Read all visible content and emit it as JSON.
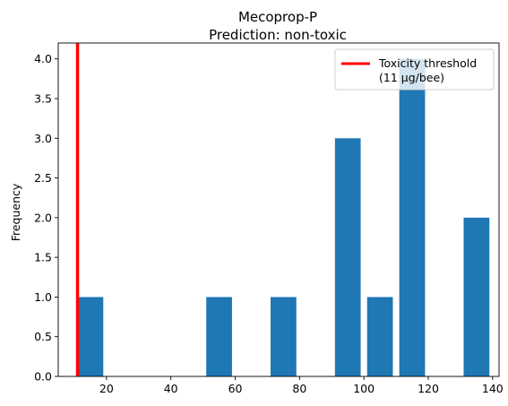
{
  "chart_data": {
    "type": "bar",
    "title": "Mecoprop-P",
    "subtitle": "Prediction: non-toxic",
    "xlabel": "",
    "ylabel": "Frequency",
    "xlim": [
      5,
      142
    ],
    "ylim": [
      0,
      4.2
    ],
    "xticks": [
      20,
      40,
      60,
      80,
      100,
      120,
      140
    ],
    "yticks": [
      0.0,
      0.5,
      1.0,
      1.5,
      2.0,
      2.5,
      3.0,
      3.5,
      4.0
    ],
    "bars": [
      {
        "x_start": 11,
        "x_end": 19,
        "value": 1
      },
      {
        "x_start": 51,
        "x_end": 59,
        "value": 1
      },
      {
        "x_start": 71,
        "x_end": 79,
        "value": 1
      },
      {
        "x_start": 91,
        "x_end": 99,
        "value": 3
      },
      {
        "x_start": 101,
        "x_end": 109,
        "value": 1
      },
      {
        "x_start": 111,
        "x_end": 119,
        "value": 4
      },
      {
        "x_start": 131,
        "x_end": 139,
        "value": 2
      }
    ],
    "threshold": {
      "x": 11,
      "label_line1": "Toxicity threshold",
      "label_line2": "(11 µg/bee)"
    },
    "legend_position": "top-right",
    "grid": false,
    "colors": {
      "bar": "#1f77b4",
      "threshold": "#ff0000"
    }
  }
}
